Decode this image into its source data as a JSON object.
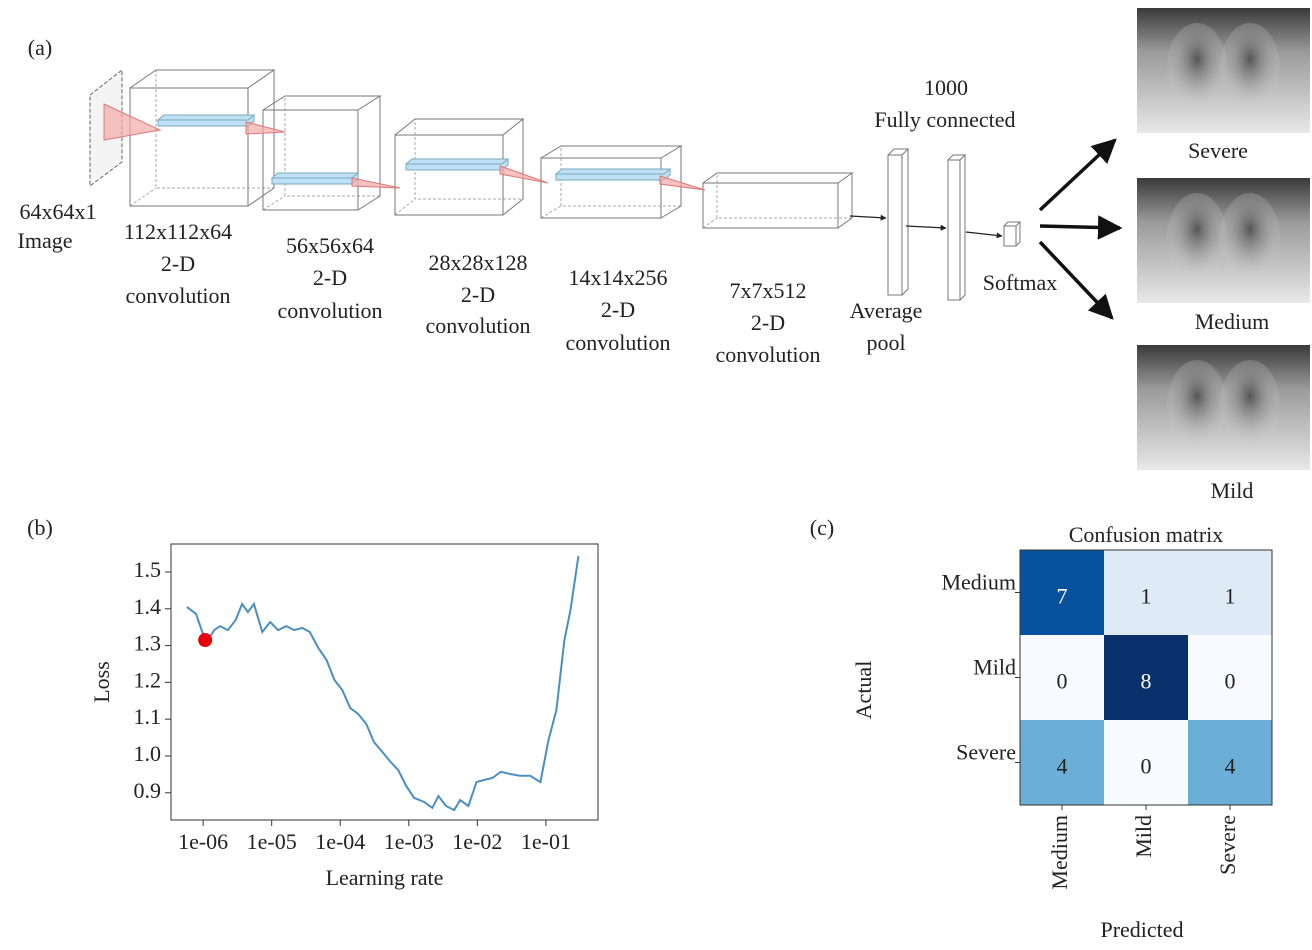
{
  "diagram": {
    "panel_label": "(a)",
    "layers": [
      {
        "label": [
          "64x64x1",
          "Image"
        ]
      },
      {
        "label": [
          "112x112x64",
          "2-D",
          "convolution"
        ]
      },
      {
        "label": [
          "56x56x64",
          "2-D",
          "convolution"
        ]
      },
      {
        "label": [
          "28x28x128",
          "2-D",
          "convolution"
        ]
      },
      {
        "label": [
          "14x14x256",
          "2-D",
          "convolution"
        ]
      },
      {
        "label": [
          "7x7x512",
          "2-D",
          "convolution"
        ]
      },
      {
        "label": [
          "Average",
          "pool"
        ]
      },
      {
        "label": [
          "1000",
          "Fully connected"
        ]
      },
      {
        "label": [
          "Softmax"
        ]
      }
    ],
    "outputs": [
      "Severe",
      "Medium",
      "Mild"
    ]
  },
  "chart_data": [
    {
      "type": "line",
      "panel_label": "(b)",
      "x_label": "Learning rate",
      "y_label": "Loss",
      "xscale": "log",
      "xlim": [
        3.4e-07,
        0.575
      ],
      "ylim": [
        0.826,
        1.576
      ],
      "xticks": [
        {
          "value": 1e-06,
          "label": "1e-06"
        },
        {
          "value": 1e-05,
          "label": "1e-05"
        },
        {
          "value": 0.0001,
          "label": "1e-04"
        },
        {
          "value": 0.001,
          "label": "1e-03"
        },
        {
          "value": 0.01,
          "label": "1e-02"
        },
        {
          "value": 0.1,
          "label": "1e-01"
        }
      ],
      "yticks": [
        0.9,
        {
          "value": 1.0,
          "label": "1.0"
        },
        1.1,
        1.2,
        1.3,
        1.4,
        1.5
      ],
      "grid": false,
      "x": [
        5.8e-07,
        7.9e-07,
        9.7e-07,
        1.18e-06,
        1.45e-06,
        1.77e-06,
        2.3e-06,
        3e-06,
        3.7e-06,
        4.5e-06,
        5.5e-06,
        7.3e-06,
        9.5e-06,
        1.24e-05,
        1.63e-05,
        2.13e-05,
        2.8e-05,
        3.6e-05,
        4.8e-05,
        6.3e-05,
        8.2e-05,
        0.000107,
        0.00014,
        0.000183,
        0.00024,
        0.00031,
        0.00041,
        0.00054,
        0.0007,
        0.00092,
        0.0012,
        0.00168,
        0.0022,
        0.0027,
        0.0035,
        0.0046,
        0.0056,
        0.0074,
        0.0097,
        0.0126,
        0.0166,
        0.022,
        0.03,
        0.042,
        0.059,
        0.083,
        0.109,
        0.142,
        0.186,
        0.228,
        0.298
      ],
      "series": [
        {
          "color": "#4a8fbf",
          "values": [
            1.405,
            1.386,
            1.337,
            1.315,
            1.342,
            1.353,
            1.342,
            1.37,
            1.413,
            1.391,
            1.413,
            1.337,
            1.364,
            1.342,
            1.353,
            1.342,
            1.348,
            1.337,
            1.293,
            1.261,
            1.207,
            1.179,
            1.13,
            1.114,
            1.087,
            1.038,
            1.011,
            0.984,
            0.962,
            0.918,
            0.886,
            0.875,
            0.859,
            0.891,
            0.864,
            0.853,
            0.88,
            0.864,
            0.929,
            0.935,
            0.94,
            0.957,
            0.951,
            0.946,
            0.946,
            0.929,
            1.043,
            1.125,
            1.315,
            1.397,
            1.543
          ]
        }
      ],
      "highlight": {
        "x": 1.07e-06,
        "y": 1.315,
        "color": "#e8000b"
      }
    },
    {
      "type": "heatmap",
      "panel_label": "(c)",
      "title": "Confusion matrix",
      "x_label": "Predicted",
      "y_label": "Actual",
      "x_categories": [
        "Medium",
        "Mild",
        "Severe"
      ],
      "y_categories": [
        "Medium",
        "Mild",
        "Severe"
      ],
      "values": [
        [
          7,
          1,
          1
        ],
        [
          0,
          8,
          0
        ],
        [
          4,
          0,
          4
        ]
      ],
      "colormap": "Blues",
      "clim": [
        0,
        8
      ]
    }
  ]
}
